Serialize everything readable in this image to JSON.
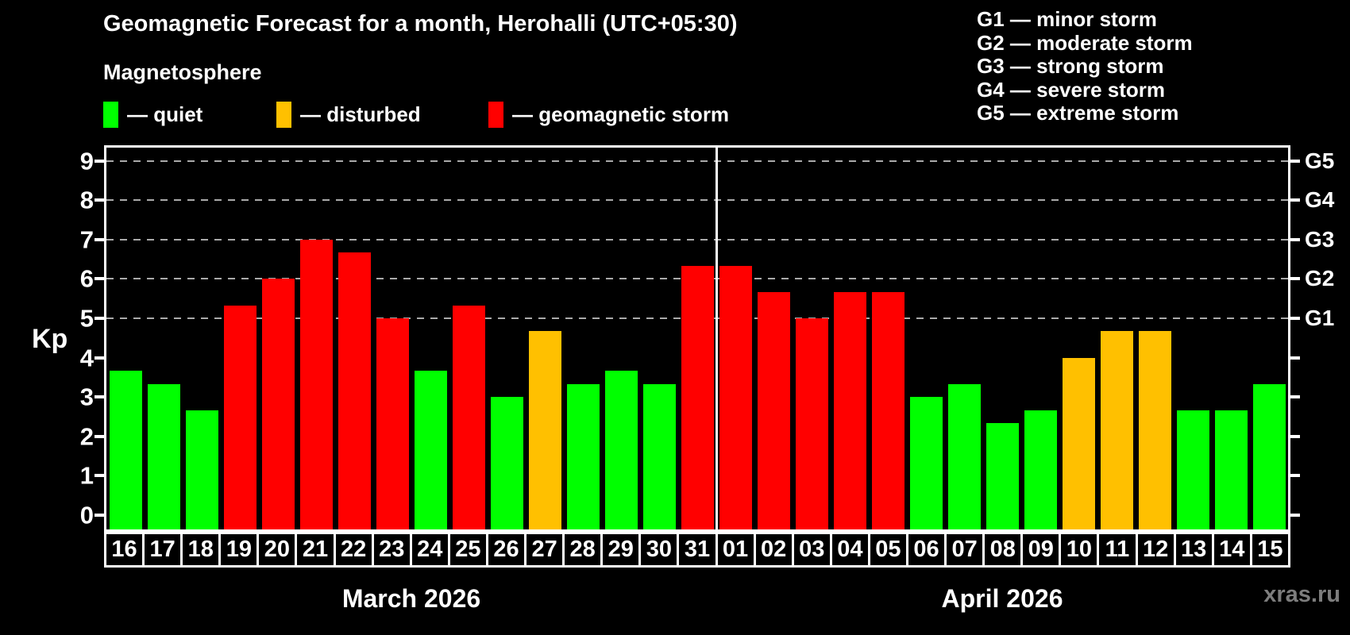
{
  "header": {
    "title": "Geomagnetic Forecast for a month, Herohalli (UTC+05:30)",
    "subtitle": "Magnetosphere"
  },
  "legend": {
    "items": [
      {
        "label": "— quiet",
        "status": "quiet",
        "color": "#00FF00"
      },
      {
        "label": "— disturbed",
        "status": "disturbed",
        "color": "#FFC000"
      },
      {
        "label": "— geomagnetic storm",
        "status": "storm",
        "color": "#FF0000"
      }
    ]
  },
  "storm_scale": [
    {
      "code": "G1",
      "label": "G1 — minor storm",
      "kp": 5
    },
    {
      "code": "G2",
      "label": "G2 — moderate storm",
      "kp": 6
    },
    {
      "code": "G3",
      "label": "G3 — strong storm",
      "kp": 7
    },
    {
      "code": "G4",
      "label": "G4 — severe storm",
      "kp": 8
    },
    {
      "code": "G5",
      "label": "G5 — extreme storm",
      "kp": 9
    }
  ],
  "footer": {
    "watermark": "xras.ru"
  },
  "chart_data": {
    "type": "bar",
    "title": "Geomagnetic Forecast for a month, Herohalli (UTC+05:30)",
    "ylabel": "Kp",
    "ylim": [
      0,
      9.4
    ],
    "yticks": [
      0,
      1,
      2,
      3,
      4,
      5,
      6,
      7,
      8,
      9
    ],
    "gridlines_at": [
      5,
      6,
      7,
      8,
      9
    ],
    "grid_style": "dashed",
    "legend_position": "top",
    "colors": {
      "quiet": "#00FF00",
      "disturbed": "#FFC000",
      "storm": "#FF0000"
    },
    "months": [
      {
        "label": "March 2026",
        "days": 16
      },
      {
        "label": "April 2026",
        "days": 15
      }
    ],
    "bars": [
      {
        "month": "March 2026",
        "date": "16",
        "value": 3.67,
        "status": "quiet"
      },
      {
        "month": "March 2026",
        "date": "17",
        "value": 3.33,
        "status": "quiet"
      },
      {
        "month": "March 2026",
        "date": "18",
        "value": 2.67,
        "status": "quiet"
      },
      {
        "month": "March 2026",
        "date": "19",
        "value": 5.33,
        "status": "storm"
      },
      {
        "month": "March 2026",
        "date": "20",
        "value": 6.0,
        "status": "storm"
      },
      {
        "month": "March 2026",
        "date": "21",
        "value": 7.0,
        "status": "storm"
      },
      {
        "month": "March 2026",
        "date": "22",
        "value": 6.67,
        "status": "storm"
      },
      {
        "month": "March 2026",
        "date": "23",
        "value": 5.0,
        "status": "storm"
      },
      {
        "month": "March 2026",
        "date": "24",
        "value": 3.67,
        "status": "quiet"
      },
      {
        "month": "March 2026",
        "date": "25",
        "value": 5.33,
        "status": "storm"
      },
      {
        "month": "March 2026",
        "date": "26",
        "value": 3.0,
        "status": "quiet"
      },
      {
        "month": "March 2026",
        "date": "27",
        "value": 4.67,
        "status": "disturbed"
      },
      {
        "month": "March 2026",
        "date": "28",
        "value": 3.33,
        "status": "quiet"
      },
      {
        "month": "March 2026",
        "date": "29",
        "value": 3.67,
        "status": "quiet"
      },
      {
        "month": "March 2026",
        "date": "30",
        "value": 3.33,
        "status": "quiet"
      },
      {
        "month": "March 2026",
        "date": "31",
        "value": 6.33,
        "status": "storm"
      },
      {
        "month": "April 2026",
        "date": "01",
        "value": 6.33,
        "status": "storm"
      },
      {
        "month": "April 2026",
        "date": "02",
        "value": 5.67,
        "status": "storm"
      },
      {
        "month": "April 2026",
        "date": "03",
        "value": 5.0,
        "status": "storm"
      },
      {
        "month": "April 2026",
        "date": "04",
        "value": 5.67,
        "status": "storm"
      },
      {
        "month": "April 2026",
        "date": "05",
        "value": 5.67,
        "status": "storm"
      },
      {
        "month": "April 2026",
        "date": "06",
        "value": 3.0,
        "status": "quiet"
      },
      {
        "month": "April 2026",
        "date": "07",
        "value": 3.33,
        "status": "quiet"
      },
      {
        "month": "April 2026",
        "date": "08",
        "value": 2.33,
        "status": "quiet"
      },
      {
        "month": "April 2026",
        "date": "09",
        "value": 2.67,
        "status": "quiet"
      },
      {
        "month": "April 2026",
        "date": "10",
        "value": 4.0,
        "status": "disturbed"
      },
      {
        "month": "April 2026",
        "date": "11",
        "value": 4.67,
        "status": "disturbed"
      },
      {
        "month": "April 2026",
        "date": "12",
        "value": 4.67,
        "status": "disturbed"
      },
      {
        "month": "April 2026",
        "date": "13",
        "value": 2.67,
        "status": "quiet"
      },
      {
        "month": "April 2026",
        "date": "14",
        "value": 2.67,
        "status": "quiet"
      },
      {
        "month": "April 2026",
        "date": "15",
        "value": 3.33,
        "status": "quiet"
      }
    ]
  }
}
